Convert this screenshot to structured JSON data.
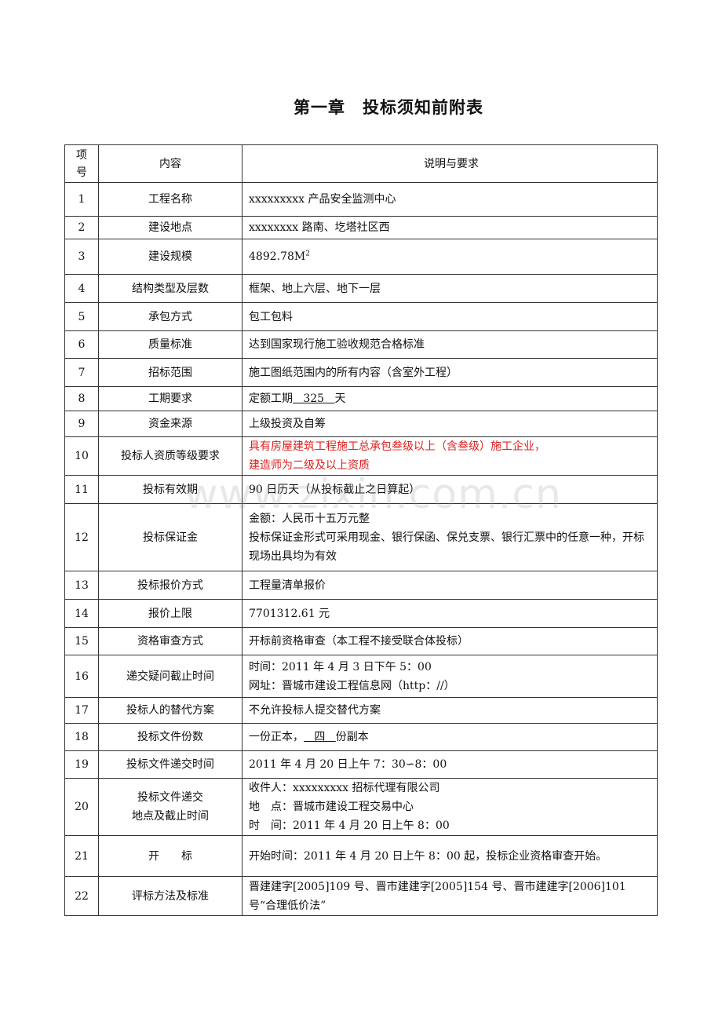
{
  "title": "第一章　投标须知前附表",
  "watermark": "www.zixin.com.cn",
  "header": {
    "num": "项\n号",
    "item": "内容",
    "desc": "说明与要求"
  },
  "rows": [
    {
      "num": "1",
      "item": [
        "工程名称"
      ],
      "desc": [
        "xxxxxxxxx 产品安全监测中心"
      ]
    },
    {
      "num": "2",
      "item": [
        "建设地点"
      ],
      "desc": [
        "xxxxxxxx 路南、圪塔社区西"
      ]
    },
    {
      "num": "3",
      "item": [
        "建设规模"
      ],
      "desc": [
        {
          "text": "4892.78M",
          "sup": "2"
        }
      ]
    },
    {
      "num": "4",
      "item": [
        "结构类型及层数"
      ],
      "desc": [
        "框架、地上六层、地下一层"
      ]
    },
    {
      "num": "5",
      "item": [
        "承包方式"
      ],
      "desc": [
        "包工包料"
      ]
    },
    {
      "num": "6",
      "item": [
        "质量标准"
      ],
      "desc": [
        "达到国家现行施工验收规范合格标准"
      ]
    },
    {
      "num": "7",
      "item": [
        "招标范围"
      ],
      "desc": [
        "施工图纸范围内的所有内容（含室外工程）"
      ]
    },
    {
      "num": "8",
      "item": [
        "工期要求"
      ],
      "desc": [
        {
          "pre": "定额工期",
          "u": "   325   ",
          "post": "天"
        }
      ]
    },
    {
      "num": "9",
      "item": [
        "资金来源"
      ],
      "desc": [
        "上级投资及自筹"
      ]
    },
    {
      "num": "10",
      "item": [
        "投标人资质等级要求"
      ],
      "red": true,
      "desc": [
        "具有房屋建筑工程施工总承包叁级以上（含叁级）施工企业，",
        "建造师为二级及以上资质"
      ]
    },
    {
      "num": "11",
      "item": [
        "投标有效期"
      ],
      "desc": [
        "90 日历天（从投标截止之日算起）"
      ]
    },
    {
      "num": "12",
      "item": [
        "投标保证金"
      ],
      "desc": [
        "金额：人民币十五万元整",
        "投标保证金形式可采用现金、银行保函、保兑支票、银行汇票中的任意一种，开标现场出具均为有效"
      ]
    },
    {
      "num": "13",
      "item": [
        "投标报价方式"
      ],
      "desc": [
        "工程量清单报价"
      ]
    },
    {
      "num": "14",
      "item": [
        "报价上限"
      ],
      "desc": [
        "7701312.61 元"
      ]
    },
    {
      "num": "15",
      "item": [
        "资格审查方式"
      ],
      "desc": [
        "开标前资格审查（本工程不接受联合体投标）"
      ]
    },
    {
      "num": "16",
      "item": [
        "递交疑问截止时间"
      ],
      "desc": [
        "时间：2011 年 4 月 3 日下午 5：00",
        "网址：晋城市建设工程信息网（http：//）"
      ]
    },
    {
      "num": "17",
      "item": [
        "投标人的替代方案"
      ],
      "desc": [
        "不允许投标人提交替代方案"
      ]
    },
    {
      "num": "18",
      "item": [
        "投标文件份数"
      ],
      "desc": [
        {
          "pre": "一份正本，",
          "u": "   四   ",
          "post": "份副本"
        }
      ]
    },
    {
      "num": "19",
      "item": [
        "投标文件递交时间"
      ],
      "desc": [
        "2011 年 4 月 20 日上午 7：30∽8：00"
      ]
    },
    {
      "num": "20",
      "item": [
        "投标文件递交",
        "地点及截止时间"
      ],
      "desc": [
        "收件人：xxxxxxxxx 招标代理有限公司",
        "地　点：晋城市建设工程交易中心",
        "时　间：2011 年 4 月 20 日上午 8：00"
      ]
    },
    {
      "num": "21",
      "item": [
        "开　　标"
      ],
      "desc": [
        "开始时间：2011 年 4 月 20 日上午 8：00 起，投标企业资格审查开始。"
      ]
    },
    {
      "num": "22",
      "item": [
        "评标方法及标准"
      ],
      "desc": [
        "晋建建字[2005]109 号、晋市建建字[2005]154 号、晋市建建字[2006]101 号“合理低价法”"
      ]
    }
  ],
  "colors": {
    "highlight_text": "#e02020"
  }
}
